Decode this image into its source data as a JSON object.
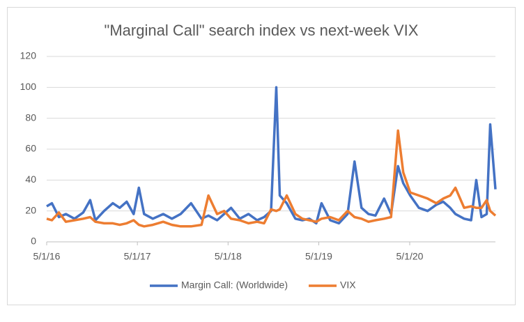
{
  "chart_data": {
    "type": "line",
    "title": "\"Marginal Call\" search index vs next-week VIX",
    "x": [
      "5/1/16",
      "5/22/16",
      "6/19/16",
      "7/17/16",
      "8/21/16",
      "9/25/16",
      "10/23/16",
      "11/13/16",
      "12/18/16",
      "1/22/17",
      "2/19/17",
      "3/19/17",
      "4/16/17",
      "5/7/17",
      "5/28/17",
      "7/2/17",
      "8/13/17",
      "9/17/17",
      "10/22/17",
      "12/3/17",
      "1/14/18",
      "2/11/18",
      "3/18/18",
      "4/15/18",
      "5/13/18",
      "6/17/18",
      "7/22/18",
      "8/26/18",
      "9/23/18",
      "10/21/18",
      "11/11/18",
      "11/25/18",
      "12/23/18",
      "1/27/19",
      "2/24/19",
      "3/24/19",
      "4/21/19",
      "5/12/19",
      "6/16/19",
      "7/21/19",
      "8/25/19",
      "9/22/19",
      "10/20/19",
      "11/17/19",
      "12/15/19",
      "1/19/20",
      "2/16/20",
      "3/15/20",
      "4/5/20",
      "5/3/20",
      "6/7/20",
      "7/12/20",
      "8/16/20",
      "9/13/20",
      "10/11/20",
      "11/1/20",
      "12/6/20",
      "1/3/21",
      "1/24/21",
      "2/14/21",
      "3/7/21",
      "3/21/21",
      "4/11/21"
    ],
    "series": [
      {
        "name": "Margin Call: (Worldwide)",
        "color": "#4472c4",
        "values": [
          23,
          25,
          16,
          18,
          15,
          19,
          27,
          14,
          20,
          25,
          22,
          26,
          18,
          35,
          18,
          15,
          18,
          15,
          18,
          25,
          15,
          17,
          14,
          18,
          22,
          15,
          18,
          14,
          16,
          20,
          100,
          30,
          25,
          15,
          14,
          15,
          12,
          25,
          14,
          12,
          18,
          52,
          22,
          18,
          17,
          28,
          18,
          49,
          38,
          30,
          22,
          20,
          24,
          26,
          22,
          18,
          15,
          14,
          40,
          16,
          18,
          76,
          34
        ]
      },
      {
        "name": "VIX",
        "color": "#ed7d31",
        "values": [
          15,
          14,
          19,
          13,
          14,
          15,
          16,
          13,
          12,
          12,
          11,
          12,
          14,
          11,
          10,
          11,
          13,
          11,
          10,
          10,
          11,
          30,
          18,
          20,
          15,
          14,
          12,
          13,
          12,
          21,
          20,
          21,
          30,
          18,
          15,
          14,
          13,
          15,
          16,
          14,
          20,
          16,
          15,
          13,
          14,
          15,
          16,
          72,
          45,
          32,
          30,
          28,
          25,
          28,
          30,
          35,
          22,
          23,
          22,
          22,
          27,
          20,
          17
        ]
      }
    ],
    "xlim": [
      "5/1/16",
      "4/11/21"
    ],
    "xticks": [
      "5/1/16",
      "5/1/17",
      "5/1/18",
      "5/1/19",
      "5/1/20"
    ],
    "ylim": [
      0,
      120
    ],
    "yticks": [
      0,
      20,
      40,
      60,
      80,
      100,
      120
    ],
    "grid": true,
    "legend": "bottom"
  }
}
